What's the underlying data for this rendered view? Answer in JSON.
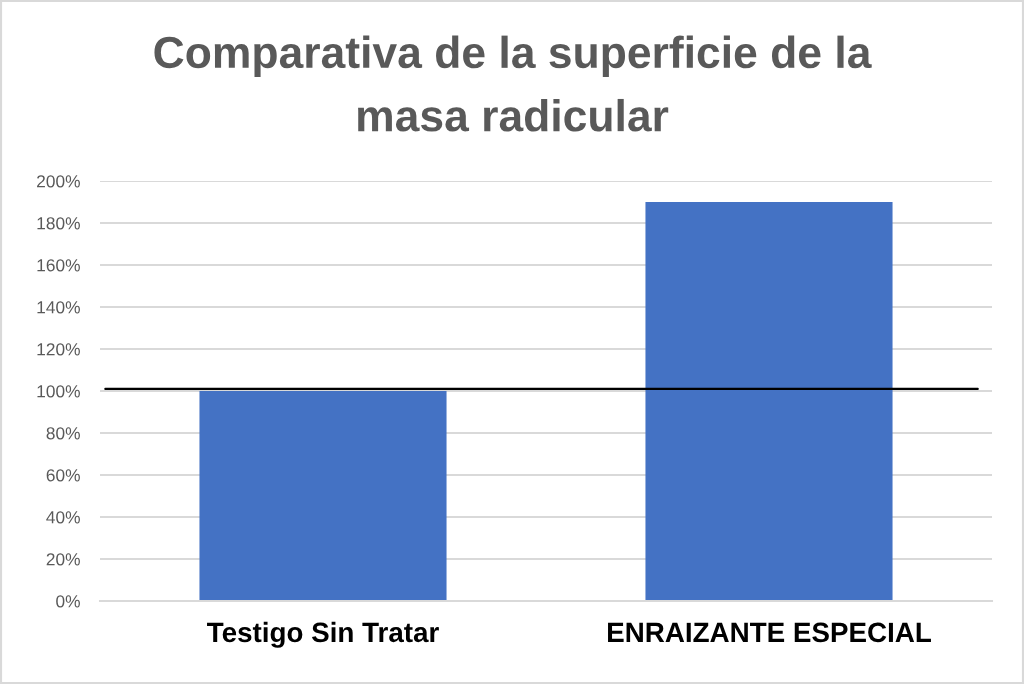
{
  "chart_data": {
    "type": "bar",
    "title": "Comparativa de la superficie de la masa radicular",
    "categories": [
      "Testigo Sin Tratar",
      "ENRAIZANTE ESPECIAL"
    ],
    "values": [
      100,
      190
    ],
    "color": "#4472c4",
    "ylim": [
      0,
      200
    ],
    "yticks": [
      {
        "value": 0,
        "label": "0%"
      },
      {
        "value": 20,
        "label": "20%"
      },
      {
        "value": 40,
        "label": "40%"
      },
      {
        "value": 60,
        "label": "60%"
      },
      {
        "value": 80,
        "label": "80%"
      },
      {
        "value": 100,
        "label": "100%"
      },
      {
        "value": 120,
        "label": "120%"
      },
      {
        "value": 140,
        "label": "140%"
      },
      {
        "value": 160,
        "label": "160%"
      },
      {
        "value": 180,
        "label": "180%"
      },
      {
        "value": 200,
        "label": "200%"
      }
    ],
    "grid": "y",
    "ref_lines": [
      {
        "axis": "y",
        "value": 101,
        "color": "#000000"
      }
    ]
  }
}
